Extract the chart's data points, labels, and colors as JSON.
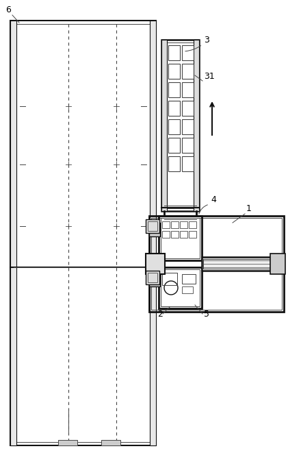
{
  "bg_color": "#ffffff",
  "lc": "#666666",
  "dc": "#111111",
  "mc": "#444444",
  "fig_width": 4.21,
  "fig_height": 6.8,
  "dpi": 100
}
